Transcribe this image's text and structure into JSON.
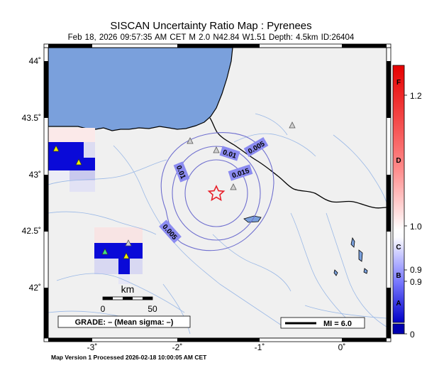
{
  "header": {
    "title": "SISCAN Uncertainty Ratio Map : Pyrenees",
    "subtitle": "Feb 18, 2026 09:57:35 AM CET   M 2.0   N42.84 W1.51   Depth: 4.5km   ID:26404"
  },
  "map": {
    "lat_labels": [
      "44˚",
      "43.5˚",
      "43˚",
      "42.5˚",
      "42˚"
    ],
    "lon_labels": [
      "-3˚",
      "-2˚",
      "-1˚",
      "0˚"
    ],
    "contour_labels": [
      "0.01",
      "0.005",
      "0.01",
      "0.015",
      "0.005"
    ],
    "scalebar": {
      "title": "km",
      "left": "0",
      "right": "50"
    },
    "grade_box": "GRADE: – (Mean sigma: –)",
    "legend": "MI = 6.0",
    "colors": {
      "sea": "#7aa0dc",
      "land": "#f0f0f0",
      "station": "#cccccc",
      "epicenter": "#e8202a",
      "contour": "#6f6fcf"
    }
  },
  "colorbar": {
    "tick_labels": [
      "1.2",
      "1.0",
      "0.9",
      "0.9",
      "0"
    ],
    "grade_letters": [
      "F",
      "D",
      "C",
      "B",
      "A"
    ]
  },
  "footer": "Map Version 1 Processed 2026-02-18 10:00:05 AM CET"
}
